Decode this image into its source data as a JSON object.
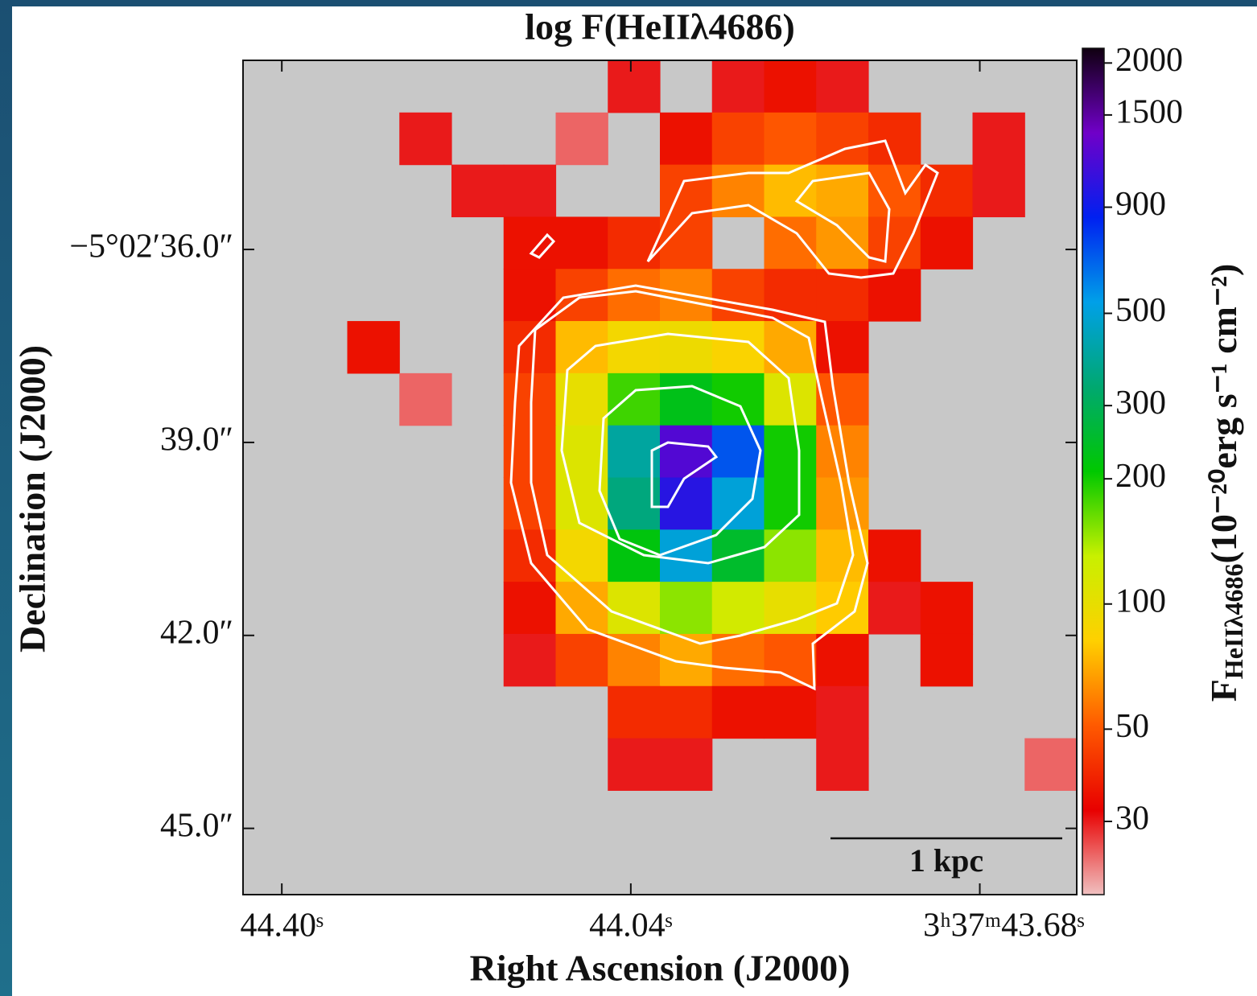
{
  "chart_data": {
    "type": "heatmap",
    "title": "log F(HeIIλ4686)",
    "x_label": "Right Ascension (J2000)",
    "y_label": "Declination (J2000)",
    "colorbar_label": {
      "main": "F",
      "sub": "HeIIλ4686",
      "rest": "(10⁻²⁰erg s⁻¹ cm⁻²)"
    },
    "xlim": [
      44.44,
      43.58
    ],
    "ylim": [
      33.06,
      46.03
    ],
    "xticks": [
      {
        "value": 44.4,
        "label": "44.40ˢ"
      },
      {
        "value": 44.04,
        "label": "44.04ˢ"
      },
      {
        "value": 43.68,
        "label": "3ʰ37ᵐ43.68ˢ"
      }
    ],
    "yticks": [
      {
        "value": 36,
        "label": "−5°02′36.0″"
      },
      {
        "value": 39,
        "label": "39.0″"
      },
      {
        "value": 42,
        "label": "42.0″"
      },
      {
        "value": 45,
        "label": "45.0″"
      }
    ],
    "clim": [
      20,
      2170
    ],
    "cticks": [
      30,
      50,
      100,
      200,
      300,
      500,
      900,
      1500,
      2000
    ],
    "log_scale": true,
    "missing_color": "#c8c8c8",
    "colormap": [
      "#f0c0c0",
      "#e80000",
      "#ff5a00",
      "#ffd000",
      "#c8f000",
      "#00c800",
      "#00a870",
      "#00a0e8",
      "#0020f0",
      "#7000c8",
      "#100010"
    ],
    "scale_bar": "1 kpc",
    "values": [
      [
        null,
        null,
        null,
        null,
        null,
        null,
        null,
        30,
        null,
        30,
        35,
        30,
        null,
        null,
        null,
        null
      ],
      [
        null,
        null,
        null,
        30,
        null,
        null,
        25,
        null,
        35,
        45,
        50,
        45,
        40,
        null,
        30,
        null
      ],
      [
        null,
        null,
        null,
        null,
        30,
        30,
        null,
        null,
        45,
        60,
        75,
        70,
        50,
        40,
        30,
        null
      ],
      [
        null,
        null,
        null,
        null,
        null,
        35,
        35,
        40,
        45,
        null,
        55,
        65,
        45,
        35,
        null,
        null
      ],
      [
        null,
        null,
        null,
        null,
        null,
        35,
        45,
        55,
        60,
        45,
        40,
        40,
        35,
        null,
        null,
        null
      ],
      [
        null,
        null,
        35,
        null,
        null,
        40,
        75,
        90,
        95,
        85,
        70,
        35,
        null,
        null,
        null,
        null
      ],
      [
        null,
        null,
        null,
        25,
        null,
        45,
        100,
        180,
        230,
        200,
        110,
        50,
        null,
        null,
        null,
        null
      ],
      [
        null,
        null,
        null,
        null,
        null,
        45,
        110,
        400,
        1200,
        700,
        200,
        60,
        null,
        null,
        null,
        null
      ],
      [
        null,
        null,
        null,
        null,
        null,
        45,
        110,
        350,
        1000,
        500,
        200,
        65,
        null,
        null,
        null,
        null
      ],
      [
        null,
        null,
        null,
        null,
        null,
        40,
        90,
        220,
        500,
        250,
        150,
        75,
        35,
        null,
        null,
        null
      ],
      [
        null,
        null,
        null,
        null,
        null,
        35,
        70,
        110,
        150,
        120,
        100,
        80,
        30,
        35,
        null,
        null
      ],
      [
        null,
        null,
        null,
        null,
        null,
        30,
        45,
        60,
        70,
        55,
        50,
        35,
        null,
        35,
        null,
        null
      ],
      [
        null,
        null,
        null,
        null,
        null,
        null,
        null,
        40,
        40,
        35,
        35,
        30,
        null,
        null,
        null,
        null
      ],
      [
        null,
        null,
        null,
        null,
        null,
        null,
        null,
        30,
        30,
        null,
        null,
        30,
        null,
        null,
        null,
        25
      ],
      [
        null,
        null,
        null,
        null,
        null,
        null,
        null,
        null,
        null,
        null,
        null,
        null,
        null,
        null,
        null,
        null
      ],
      [
        null,
        null,
        null,
        null,
        null,
        null,
        null,
        null,
        null,
        null,
        null,
        null,
        null,
        null,
        null,
        null
      ]
    ]
  }
}
